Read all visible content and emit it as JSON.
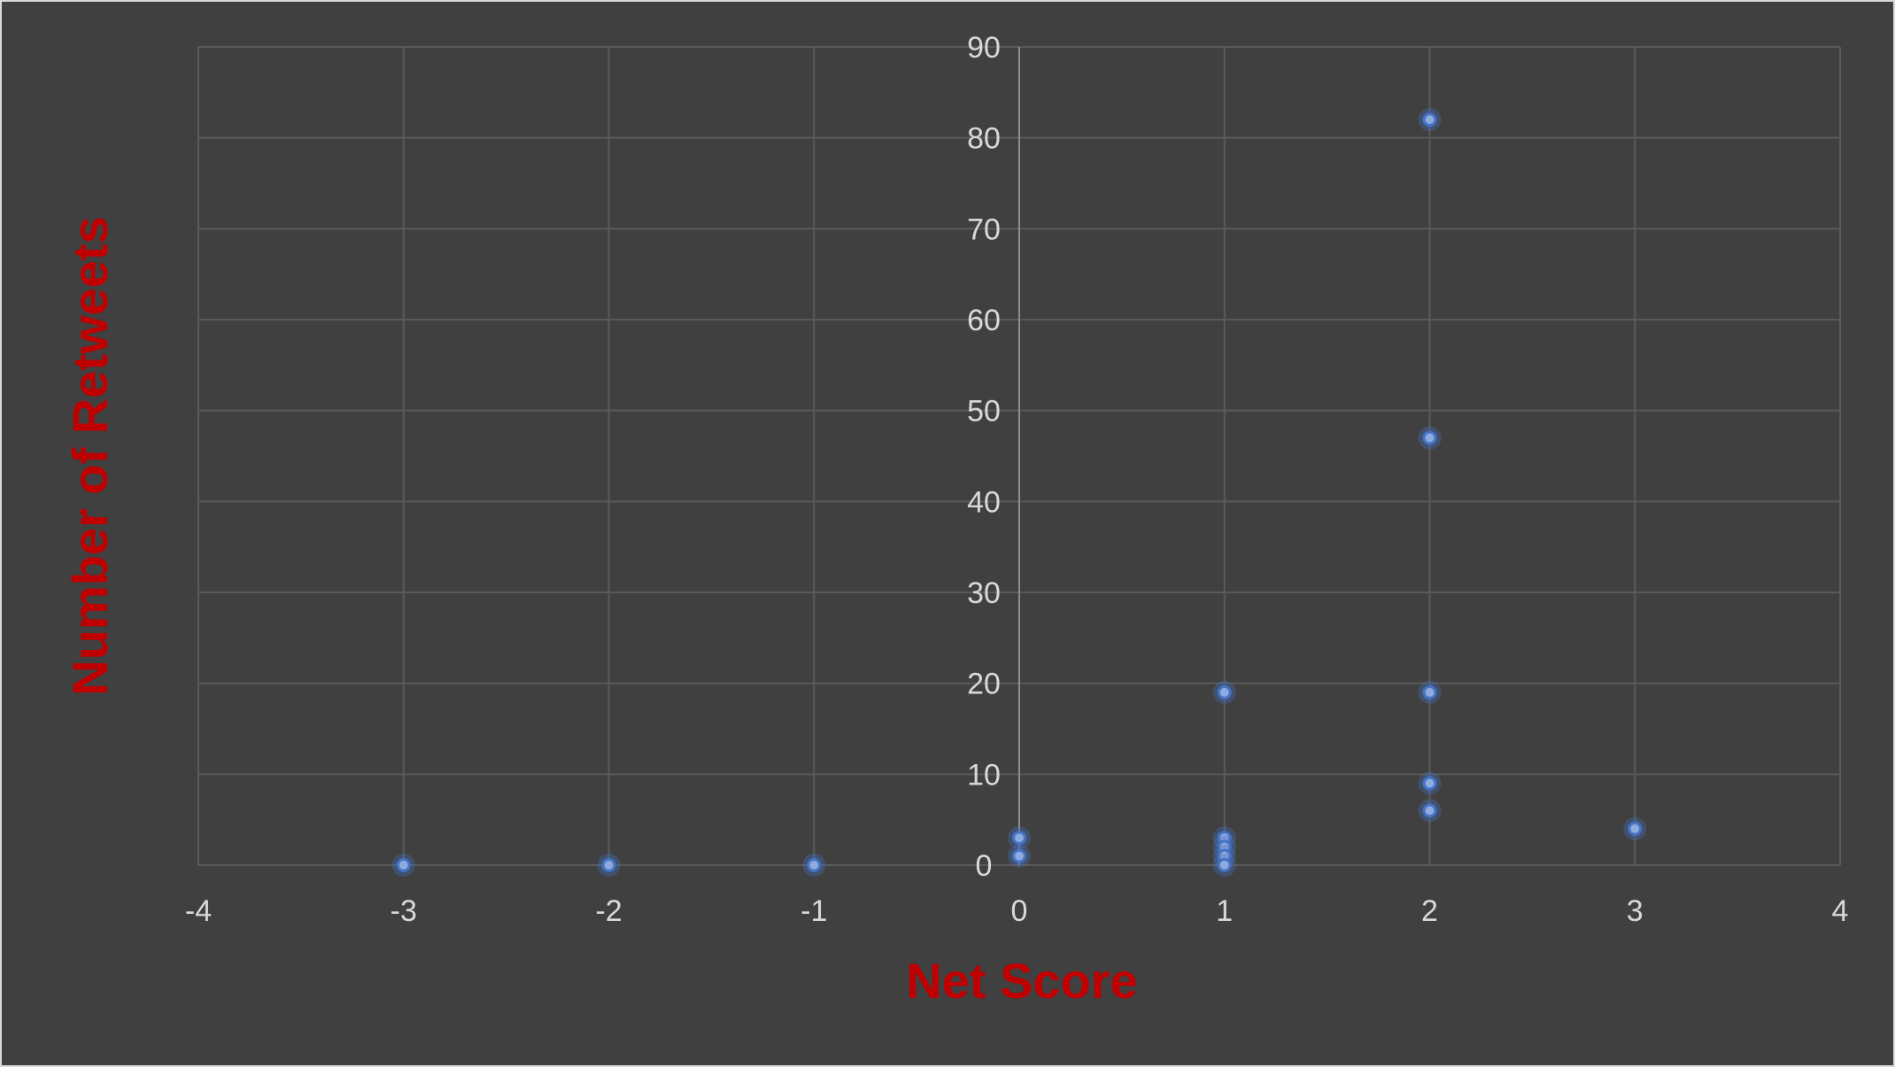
{
  "chart_data": {
    "type": "scatter",
    "title": "",
    "xlabel": "Net Score",
    "ylabel": "Number of Retweets",
    "xlim": [
      -4,
      4
    ],
    "ylim": [
      0,
      90
    ],
    "x_ticks": [
      -4,
      -3,
      -2,
      -1,
      0,
      1,
      2,
      3,
      4
    ],
    "y_ticks": [
      0,
      10,
      20,
      30,
      40,
      50,
      60,
      70,
      80,
      90
    ],
    "grid": true,
    "legend": "none",
    "series": [
      {
        "points": [
          {
            "x": -3,
            "y": 0
          },
          {
            "x": -2,
            "y": 0
          },
          {
            "x": -1,
            "y": 0
          },
          {
            "x": 0,
            "y": 3
          },
          {
            "x": 0,
            "y": 1
          },
          {
            "x": 1,
            "y": 19
          },
          {
            "x": 1,
            "y": 3
          },
          {
            "x": 1,
            "y": 2
          },
          {
            "x": 1,
            "y": 1
          },
          {
            "x": 1,
            "y": 0
          },
          {
            "x": 2,
            "y": 82
          },
          {
            "x": 2,
            "y": 47
          },
          {
            "x": 2,
            "y": 19
          },
          {
            "x": 2,
            "y": 9
          },
          {
            "x": 2,
            "y": 6
          },
          {
            "x": 3,
            "y": 4
          }
        ]
      }
    ]
  },
  "colors": {
    "background": "#404040",
    "grid": "#5a5a5a",
    "axis_text": "#d9d9d9",
    "axis_title": "#c00000",
    "marker_fill": "#8faadc",
    "marker_edge": "#4472c4"
  }
}
